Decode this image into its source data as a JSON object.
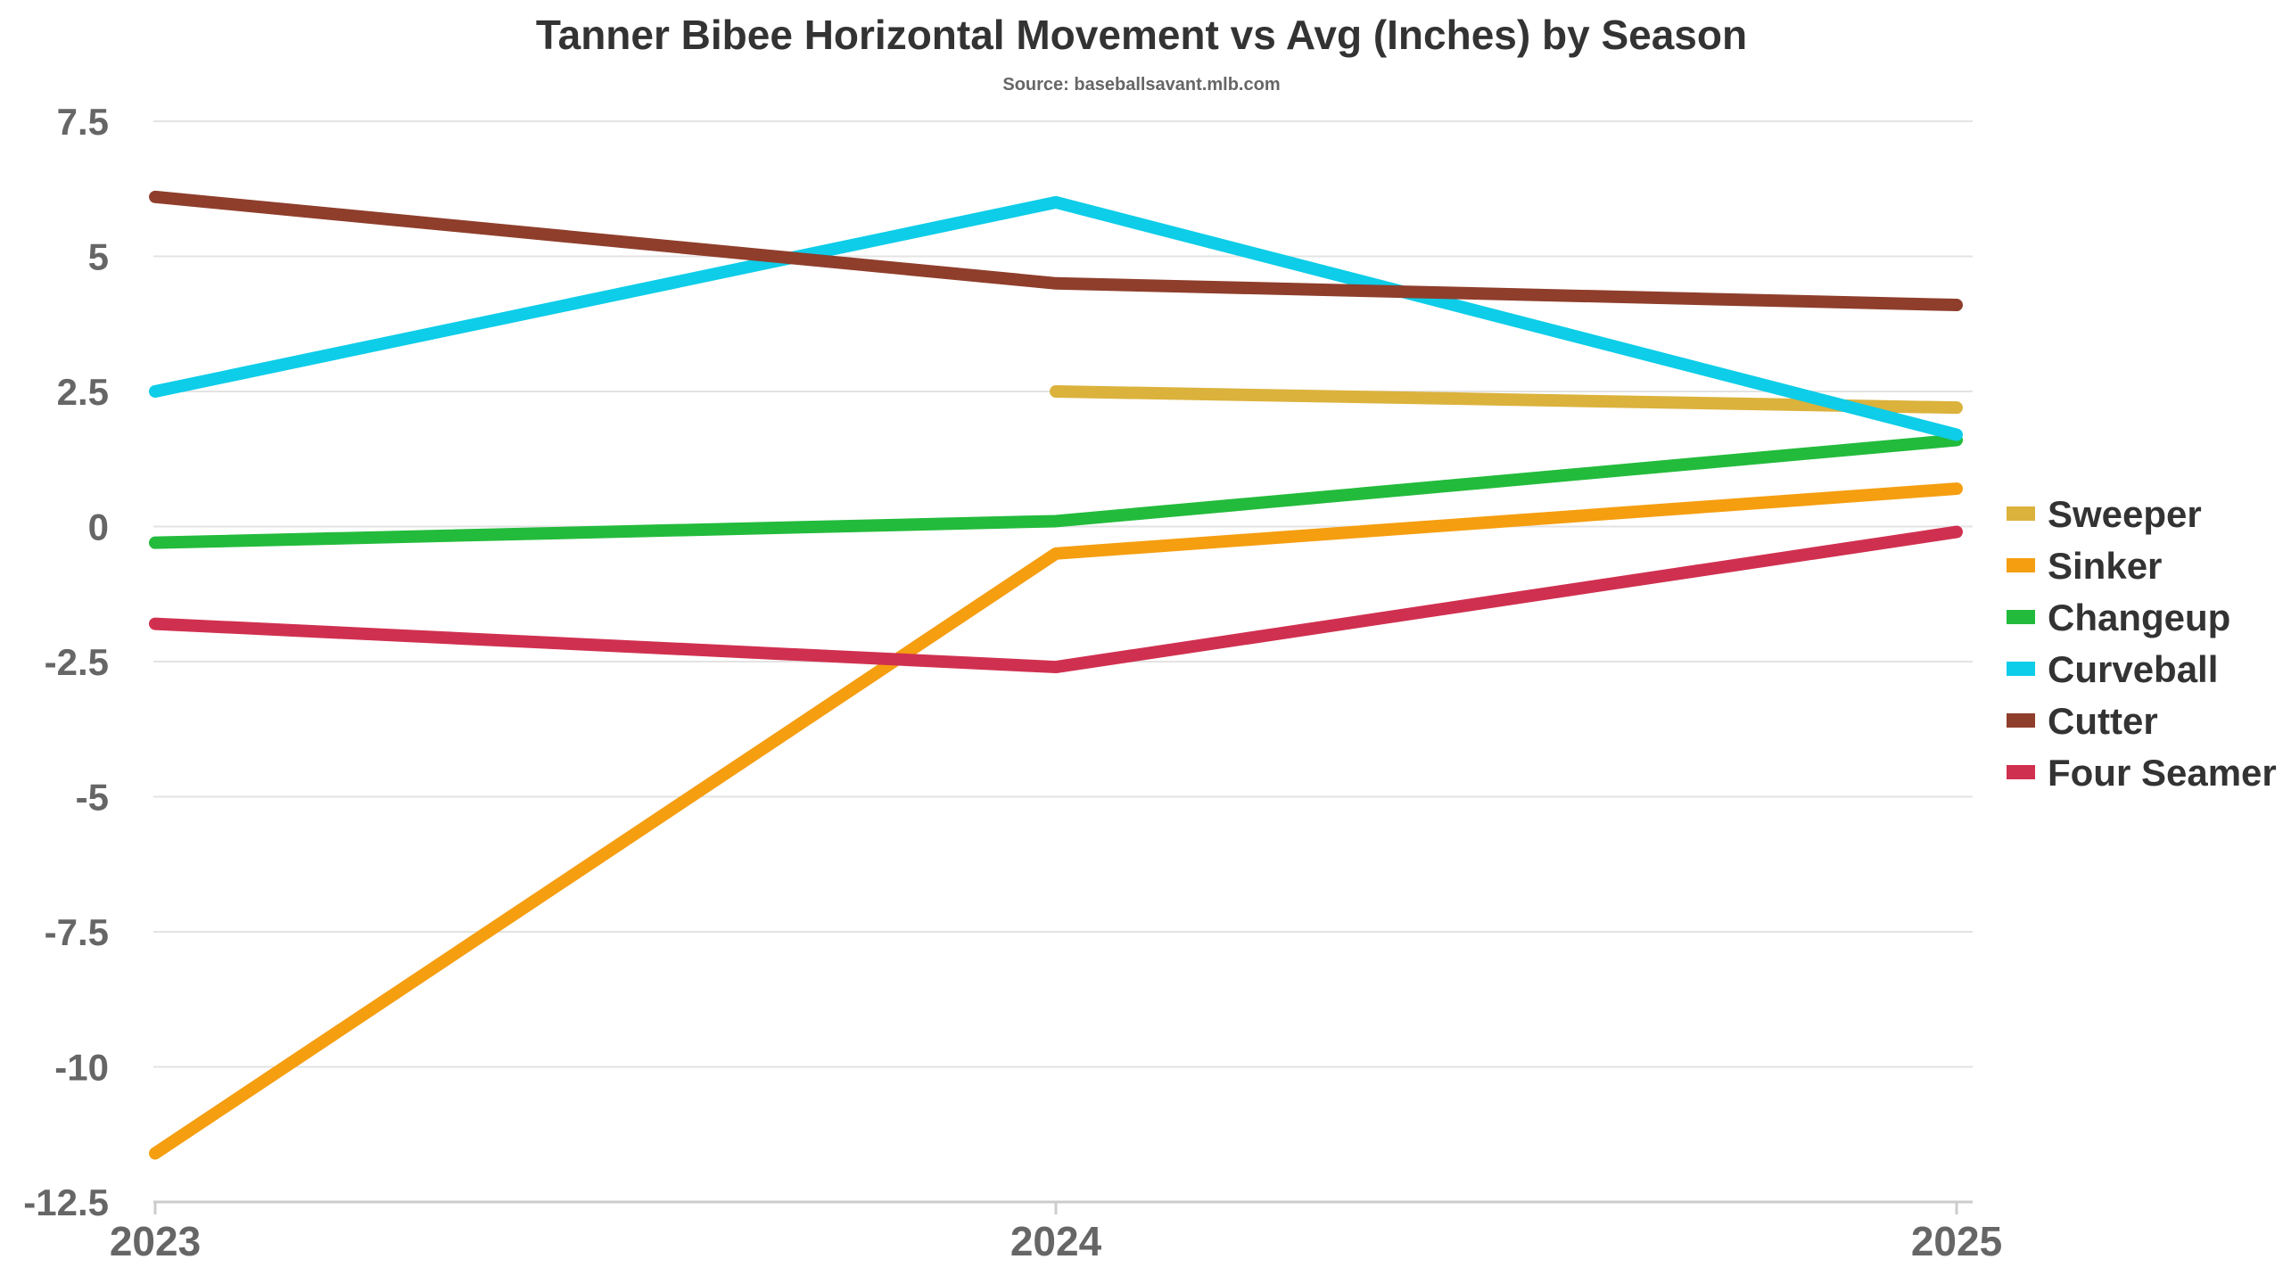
{
  "chart_data": {
    "type": "line",
    "title": "Tanner Bibee Horizontal Movement vs Avg (Inches) by Season",
    "subtitle": "Source: baseballsavant.mlb.com",
    "x": [
      "2023",
      "2024",
      "2025"
    ],
    "ylim": [
      -12.5,
      7.5
    ],
    "yticks": [
      7.5,
      5,
      2.5,
      0,
      -2.5,
      -5,
      -7.5,
      -10,
      -12.5
    ],
    "ytick_labels": [
      "7.5",
      "5",
      "2.5",
      "0",
      "-2.5",
      "-5",
      "-7.5",
      "-10",
      "-12.5"
    ],
    "grid": true,
    "legend_position": "right",
    "series": [
      {
        "name": "Sweeper",
        "color": "#dbb23c",
        "values": [
          null,
          2.5,
          2.2
        ]
      },
      {
        "name": "Sinker",
        "color": "#f59e10",
        "values": [
          -11.6,
          -0.5,
          0.7
        ]
      },
      {
        "name": "Changeup",
        "color": "#23bb3c",
        "values": [
          -0.3,
          0.1,
          1.6
        ]
      },
      {
        "name": "Curveball",
        "color": "#0dcde8",
        "values": [
          2.5,
          6.0,
          1.7
        ]
      },
      {
        "name": "Cutter",
        "color": "#8f3e2c",
        "values": [
          6.1,
          4.5,
          4.1
        ]
      },
      {
        "name": "Four Seamer",
        "color": "#d03050",
        "values": [
          -1.8,
          -2.6,
          -0.1
        ]
      }
    ]
  }
}
